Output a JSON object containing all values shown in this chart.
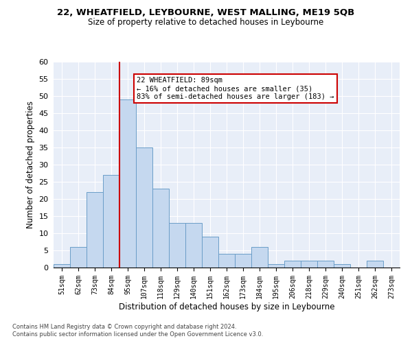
{
  "title1": "22, WHEATFIELD, LEYBOURNE, WEST MALLING, ME19 5QB",
  "title2": "Size of property relative to detached houses in Leybourne",
  "xlabel": "Distribution of detached houses by size in Leybourne",
  "ylabel": "Number of detached properties",
  "categories": [
    "51sqm",
    "62sqm",
    "73sqm",
    "84sqm",
    "95sqm",
    "107sqm",
    "118sqm",
    "129sqm",
    "140sqm",
    "151sqm",
    "162sqm",
    "173sqm",
    "184sqm",
    "195sqm",
    "206sqm",
    "218sqm",
    "229sqm",
    "240sqm",
    "251sqm",
    "262sqm",
    "273sqm"
  ],
  "values": [
    1,
    6,
    22,
    27,
    49,
    35,
    23,
    13,
    13,
    9,
    4,
    4,
    6,
    1,
    2,
    2,
    2,
    1,
    0,
    2,
    0
  ],
  "bar_color": "#c5d8ef",
  "bar_edge_color": "#6a9dc8",
  "vline_x": 3.5,
  "vline_color": "#cc0000",
  "annotation_text": "22 WHEATFIELD: 89sqm\n← 16% of detached houses are smaller (35)\n83% of semi-detached houses are larger (183) →",
  "annotation_box_color": "#ffffff",
  "annotation_box_edge": "#cc0000",
  "ylim": [
    0,
    60
  ],
  "yticks": [
    0,
    5,
    10,
    15,
    20,
    25,
    30,
    35,
    40,
    45,
    50,
    55,
    60
  ],
  "background_color": "#e8eef8",
  "footer1": "Contains HM Land Registry data © Crown copyright and database right 2024.",
  "footer2": "Contains public sector information licensed under the Open Government Licence v3.0."
}
